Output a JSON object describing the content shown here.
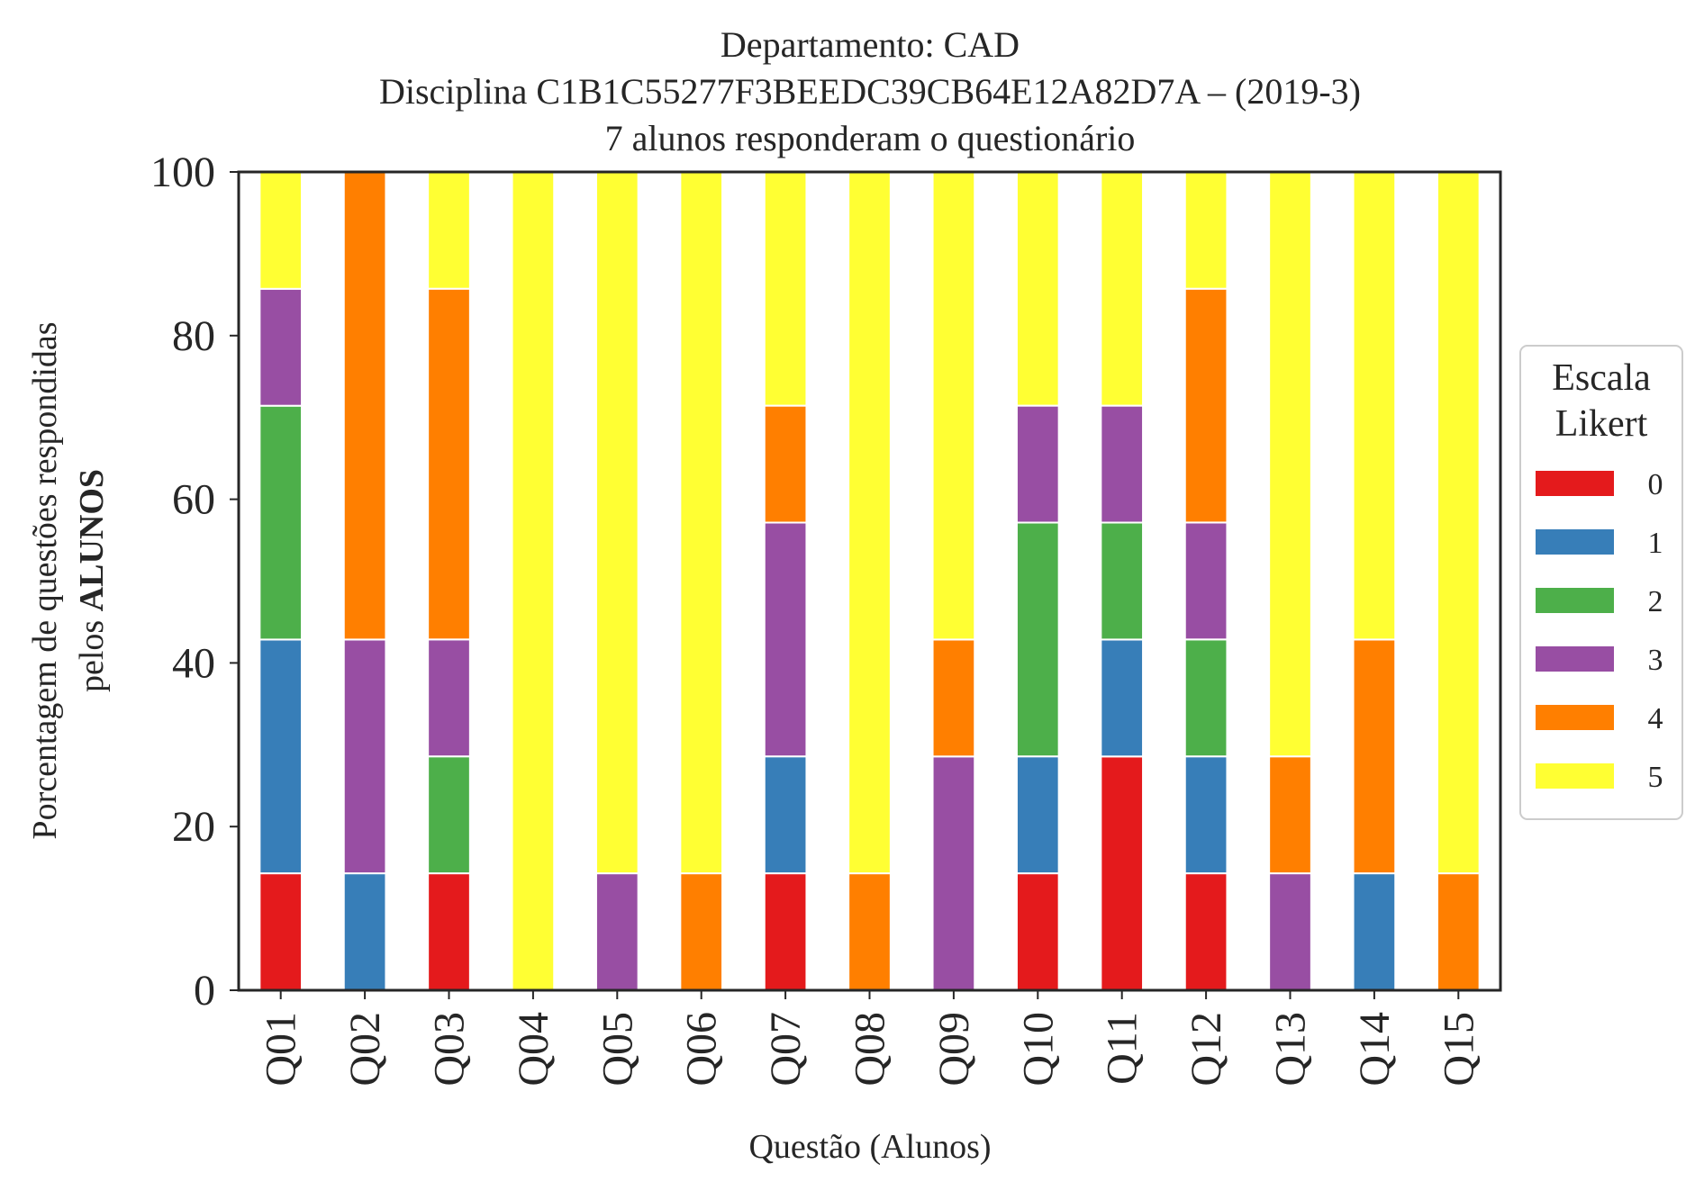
{
  "chart_data": {
    "type": "bar",
    "stacked": true,
    "title_lines": [
      "Departamento: CAD",
      "Disciplina C1B1C55277F3BEEDC39CB64E12A82D7A – (2019-3)",
      "7 alunos responderam o questionário"
    ],
    "xlabel": "Questão (Alunos)",
    "ylabel_line1": "Porcentagem de questões respondidas",
    "ylabel_line2_prefix": "pelos ",
    "ylabel_line2_bold": "ALUNOS",
    "ylim": [
      0,
      100
    ],
    "yticks": [
      "0",
      "20",
      "40",
      "60",
      "80",
      "100"
    ],
    "grid": false,
    "legend": {
      "title_lines": [
        "Escala",
        "Likert"
      ],
      "placement": "right"
    },
    "categories": [
      "Q01",
      "Q02",
      "Q03",
      "Q04",
      "Q05",
      "Q06",
      "Q07",
      "Q08",
      "Q09",
      "Q10",
      "Q11",
      "Q12",
      "Q13",
      "Q14",
      "Q15"
    ],
    "series": [
      {
        "name": "0",
        "color": "#e41a1c",
        "values": [
          14.29,
          0,
          14.29,
          0,
          0,
          0,
          14.29,
          0,
          0,
          14.29,
          28.57,
          14.29,
          0,
          0,
          0
        ]
      },
      {
        "name": "1",
        "color": "#377eb8",
        "values": [
          28.57,
          14.29,
          0,
          0,
          0,
          0,
          14.29,
          0,
          0,
          14.29,
          14.29,
          14.29,
          0,
          14.29,
          0
        ]
      },
      {
        "name": "2",
        "color": "#4daf4a",
        "values": [
          28.57,
          0,
          14.29,
          0,
          0,
          0,
          0,
          0,
          0,
          28.57,
          14.29,
          14.29,
          0,
          0,
          0
        ]
      },
      {
        "name": "3",
        "color": "#984ea3",
        "values": [
          14.29,
          28.57,
          14.29,
          0,
          14.29,
          0,
          28.57,
          0,
          28.57,
          14.29,
          14.29,
          14.29,
          14.29,
          0,
          0
        ]
      },
      {
        "name": "4",
        "color": "#ff7f00",
        "values": [
          0,
          57.14,
          42.86,
          0,
          0,
          14.29,
          14.29,
          14.29,
          14.29,
          0,
          0,
          28.57,
          14.29,
          28.57,
          14.29
        ]
      },
      {
        "name": "5",
        "color": "#ffff33",
        "values": [
          14.29,
          0,
          14.29,
          100,
          85.71,
          85.71,
          28.57,
          85.71,
          57.14,
          28.57,
          28.57,
          14.29,
          71.43,
          57.14,
          85.71
        ]
      }
    ]
  }
}
